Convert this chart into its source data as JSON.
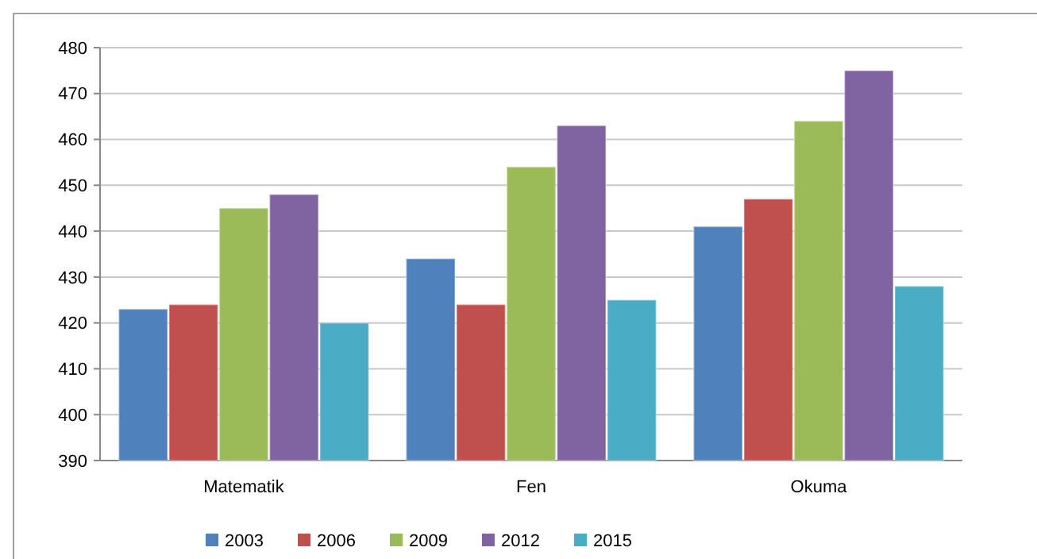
{
  "chart_data": {
    "type": "bar",
    "categories": [
      "Matematik",
      "Fen",
      "Okuma"
    ],
    "series": [
      {
        "name": "2003",
        "color": "#4f81bd",
        "values": [
          423,
          434,
          441
        ]
      },
      {
        "name": "2006",
        "color": "#c0504d",
        "values": [
          424,
          424,
          447
        ]
      },
      {
        "name": "2009",
        "color": "#9bbb59",
        "values": [
          445,
          454,
          464
        ]
      },
      {
        "name": "2012",
        "color": "#8064a2",
        "values": [
          448,
          463,
          475
        ]
      },
      {
        "name": "2015",
        "color": "#4bacc6",
        "values": [
          420,
          425,
          428
        ]
      }
    ],
    "ylim": [
      390,
      480
    ],
    "yticks": [
      390,
      400,
      410,
      420,
      430,
      440,
      450,
      460,
      470,
      480
    ],
    "grid": "y",
    "legend": "bottom"
  }
}
